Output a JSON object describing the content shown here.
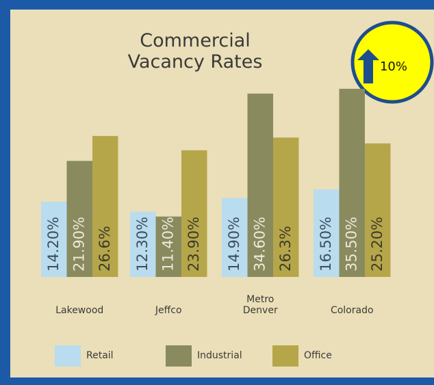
{
  "chart_data": {
    "type": "bar",
    "title": "Commercial Vacancy Rates",
    "categories": [
      "Lakewood",
      "Jeffco",
      "Metro Denver",
      "Colorado"
    ],
    "series": [
      {
        "name": "Retail",
        "color": "#b9dcef",
        "values": [
          14.2,
          12.3,
          14.9,
          16.5
        ],
        "value_labels": [
          "14.20%",
          "12.30%",
          "14.90%",
          "16.50%"
        ]
      },
      {
        "name": "Industrial",
        "color": "#8a8a5f",
        "values": [
          21.9,
          11.4,
          34.6,
          35.5
        ],
        "value_labels": [
          "21.90%",
          "11.40%",
          "34.60%",
          "35.50%"
        ]
      },
      {
        "name": "Office",
        "color": "#b6a64a",
        "values": [
          26.6,
          23.9,
          26.3,
          25.2
        ],
        "value_labels": [
          "26.6%",
          "23.90%",
          "26.3%",
          "25.20%"
        ]
      }
    ],
    "annotation": "10%"
  }
}
